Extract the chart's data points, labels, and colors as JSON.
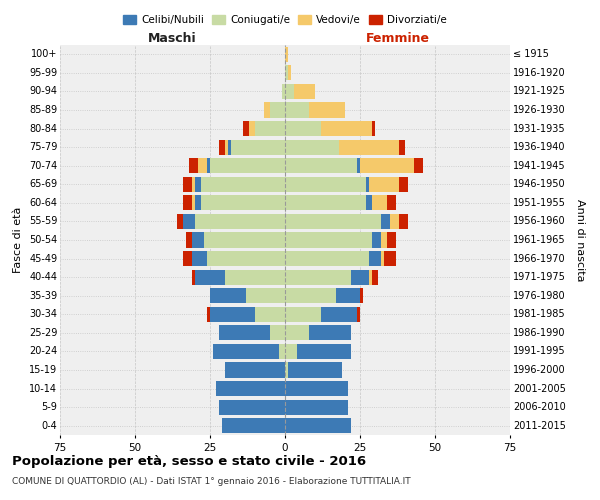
{
  "age_groups_bottom_to_top": [
    "0-4",
    "5-9",
    "10-14",
    "15-19",
    "20-24",
    "25-29",
    "30-34",
    "35-39",
    "40-44",
    "45-49",
    "50-54",
    "55-59",
    "60-64",
    "65-69",
    "70-74",
    "75-79",
    "80-84",
    "85-89",
    "90-94",
    "95-99",
    "100+"
  ],
  "birth_years_bottom_to_top": [
    "2011-2015",
    "2006-2010",
    "2001-2005",
    "1996-2000",
    "1991-1995",
    "1986-1990",
    "1981-1985",
    "1976-1980",
    "1971-1975",
    "1966-1970",
    "1961-1965",
    "1956-1960",
    "1951-1955",
    "1946-1950",
    "1941-1945",
    "1936-1940",
    "1931-1935",
    "1926-1930",
    "1921-1925",
    "1916-1920",
    "≤ 1915"
  ],
  "colors": {
    "celibi": "#3d7ab5",
    "coniugati": "#c8dba4",
    "vedovi": "#f5c96a",
    "divorziati": "#cc2200"
  },
  "males": {
    "celibi": [
      21,
      22,
      23,
      20,
      22,
      17,
      15,
      12,
      10,
      5,
      4,
      4,
      2,
      2,
      1,
      1,
      0,
      0,
      0,
      0,
      0
    ],
    "coniugati": [
      0,
      0,
      0,
      0,
      2,
      5,
      10,
      13,
      20,
      26,
      27,
      30,
      28,
      28,
      25,
      18,
      10,
      5,
      1,
      0,
      0
    ],
    "vedovi": [
      0,
      0,
      0,
      0,
      0,
      0,
      0,
      0,
      0,
      0,
      0,
      0,
      1,
      1,
      3,
      1,
      2,
      2,
      0,
      0,
      0
    ],
    "divorziati": [
      0,
      0,
      0,
      0,
      0,
      0,
      1,
      0,
      1,
      3,
      2,
      2,
      3,
      3,
      3,
      2,
      2,
      0,
      0,
      0,
      0
    ]
  },
  "females": {
    "nubili": [
      22,
      21,
      21,
      18,
      18,
      14,
      12,
      8,
      6,
      4,
      3,
      3,
      2,
      1,
      1,
      0,
      0,
      0,
      0,
      0,
      0
    ],
    "coniugate": [
      0,
      0,
      0,
      1,
      4,
      8,
      12,
      17,
      22,
      28,
      29,
      32,
      27,
      27,
      24,
      18,
      12,
      8,
      3,
      1,
      0
    ],
    "vedove": [
      0,
      0,
      0,
      0,
      0,
      0,
      0,
      0,
      1,
      1,
      2,
      3,
      5,
      10,
      18,
      20,
      17,
      12,
      7,
      1,
      1
    ],
    "divorziate": [
      0,
      0,
      0,
      0,
      0,
      0,
      1,
      1,
      2,
      4,
      3,
      3,
      3,
      3,
      3,
      2,
      1,
      0,
      0,
      0,
      0
    ]
  },
  "title": "Popolazione per età, sesso e stato civile - 2016",
  "subtitle": "COMUNE DI QUATTORDIO (AL) - Dati ISTAT 1° gennaio 2016 - Elaborazione TUTTITALIA.IT",
  "label_maschi": "Maschi",
  "label_femmine": "Femmine",
  "ylabel_left": "Fasce di età",
  "ylabel_right": "Anni di nascita",
  "xlim": 75,
  "legend_labels": [
    "Celibi/Nubili",
    "Coniugati/e",
    "Vedovi/e",
    "Divorziati/e"
  ],
  "bg_color": "#efefef"
}
